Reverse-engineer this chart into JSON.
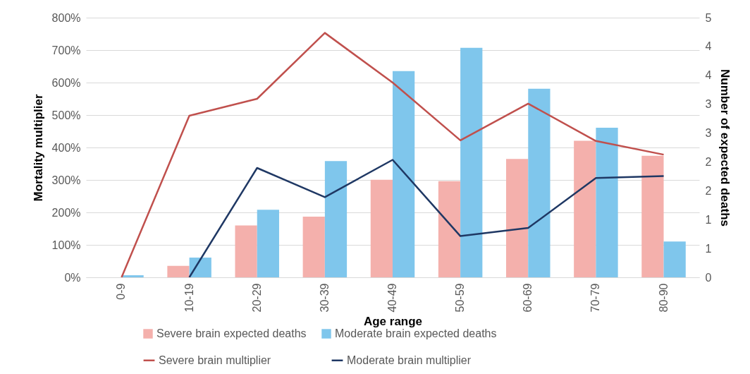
{
  "chart_data": {
    "type": "bar",
    "xlabel": "Age range",
    "ylabel": "Mortality multiplier",
    "y2label": "Number of expected deaths",
    "categories": [
      "0-9",
      "10-19",
      "20-29",
      "30-39",
      "40-49",
      "50-59",
      "60-69",
      "70-79",
      "80-90"
    ],
    "series": [
      {
        "name": "Severe brain expected deaths",
        "color": "#f4b0ac",
        "axis": "y2",
        "values": [
          0,
          0.22,
          1.0,
          1.17,
          1.88,
          1.85,
          2.28,
          2.63,
          2.34
        ]
      },
      {
        "name": "Moderate brain expected deaths",
        "color": "#7fc6ec",
        "axis": "y2",
        "values": [
          0.04,
          0.38,
          1.3,
          2.24,
          3.97,
          4.42,
          3.63,
          2.88,
          0.69
        ]
      },
      {
        "name": "Severe brain multiplier",
        "color": "#c0504d",
        "type": "line",
        "values": [
          0,
          498,
          550,
          753,
          600,
          422,
          535,
          420,
          378
        ]
      },
      {
        "name": "Moderate brain multiplier",
        "color": "#1f3864",
        "type": "line",
        "values": [
          null,
          0,
          337,
          247,
          362,
          127,
          152,
          306,
          312
        ]
      }
    ],
    "ylim": [
      0,
      800
    ],
    "yticks": [
      {
        "value": 0,
        "label": "0%"
      },
      {
        "value": 100,
        "label": "100%"
      },
      {
        "value": 200,
        "label": "200%"
      },
      {
        "value": 300,
        "label": "300%"
      },
      {
        "value": 400,
        "label": "400%"
      },
      {
        "value": 500,
        "label": "500%"
      },
      {
        "value": 600,
        "label": "600%"
      },
      {
        "value": 700,
        "label": "700%"
      },
      {
        "value": 800,
        "label": "800%"
      }
    ],
    "y2lim": [
      0,
      5
    ],
    "y2ticks": [
      0,
      {
        "value": 0.556,
        "label": "1"
      },
      {
        "value": 1.111,
        "label": "1"
      },
      {
        "value": 1.667,
        "label": "2"
      },
      {
        "value": 2.222,
        "label": "2"
      },
      {
        "value": 2.778,
        "label": "3"
      },
      {
        "value": 3.333,
        "label": "3"
      },
      {
        "value": 3.889,
        "label": "4"
      },
      {
        "value": 4.444,
        "label": "4"
      },
      5
    ],
    "grid": "y",
    "legend": "bottom",
    "line_style": "solid"
  }
}
